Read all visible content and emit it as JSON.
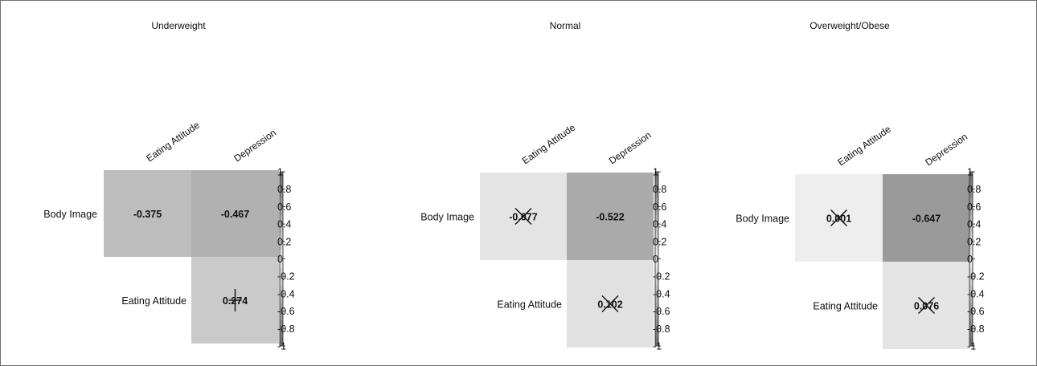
{
  "chart_data": [
    {
      "type": "heatmap",
      "title": "Underweight",
      "columns": [
        "Eating Attitude",
        "Depression"
      ],
      "rows": [
        "Body Image",
        "Eating Attitude"
      ],
      "cells": [
        {
          "row": "Body Image",
          "column": "Eating Attitude",
          "value": -0.375,
          "label": "-0.375",
          "significant": true
        },
        {
          "row": "Body Image",
          "column": "Depression",
          "value": -0.467,
          "label": "-0.467",
          "significant": true
        },
        {
          "row": "Eating Attitude",
          "column": "Depression",
          "value": 0.274,
          "label": "0.274",
          "significant": false,
          "marker": "plus"
        }
      ],
      "colorbar": {
        "range": [
          -1,
          1
        ],
        "ticks": [
          "1",
          "0.8",
          "0.6",
          "0.4",
          "0.2",
          "0",
          "-0.2",
          "-0.4",
          "-0.6",
          "-0.8",
          "-1"
        ]
      }
    },
    {
      "type": "heatmap",
      "title": "Normal",
      "columns": [
        "Eating Attitude",
        "Depression"
      ],
      "rows": [
        "Body Image",
        "Eating Attitude"
      ],
      "cells": [
        {
          "row": "Body Image",
          "column": "Eating Attitude",
          "value": -0.077,
          "label": "-0.077",
          "significant": false,
          "marker": "cross"
        },
        {
          "row": "Body Image",
          "column": "Depression",
          "value": -0.522,
          "label": "-0.522",
          "significant": true
        },
        {
          "row": "Eating Attitude",
          "column": "Depression",
          "value": 0.102,
          "label": "0.102",
          "significant": false,
          "marker": "cross"
        }
      ],
      "colorbar": {
        "range": [
          -1,
          1
        ],
        "ticks": [
          "1",
          "0.8",
          "0.6",
          "0.4",
          "0.2",
          "0",
          "-0.2",
          "-0.4",
          "-0.6",
          "-0.8",
          "-1"
        ]
      }
    },
    {
      "type": "heatmap",
      "title": "Overweight/Obese",
      "columns": [
        "Eating Attitude",
        "Depression"
      ],
      "rows": [
        "Body Image",
        "Eating Attitude"
      ],
      "cells": [
        {
          "row": "Body Image",
          "column": "Eating Attitude",
          "value": 0.001,
          "label": "0.001",
          "significant": false,
          "marker": "cross"
        },
        {
          "row": "Body Image",
          "column": "Depression",
          "value": -0.647,
          "label": "-0.647",
          "significant": true
        },
        {
          "row": "Eating Attitude",
          "column": "Depression",
          "value": 0.076,
          "label": "0.076",
          "significant": false,
          "marker": "cross"
        }
      ],
      "colorbar": {
        "range": [
          -1,
          1
        ],
        "ticks": [
          "1",
          "0.8",
          "0.6",
          "0.4",
          "0.2",
          "0",
          "-0.2",
          "-0.4",
          "-0.6",
          "-0.8",
          "-1"
        ]
      }
    }
  ]
}
